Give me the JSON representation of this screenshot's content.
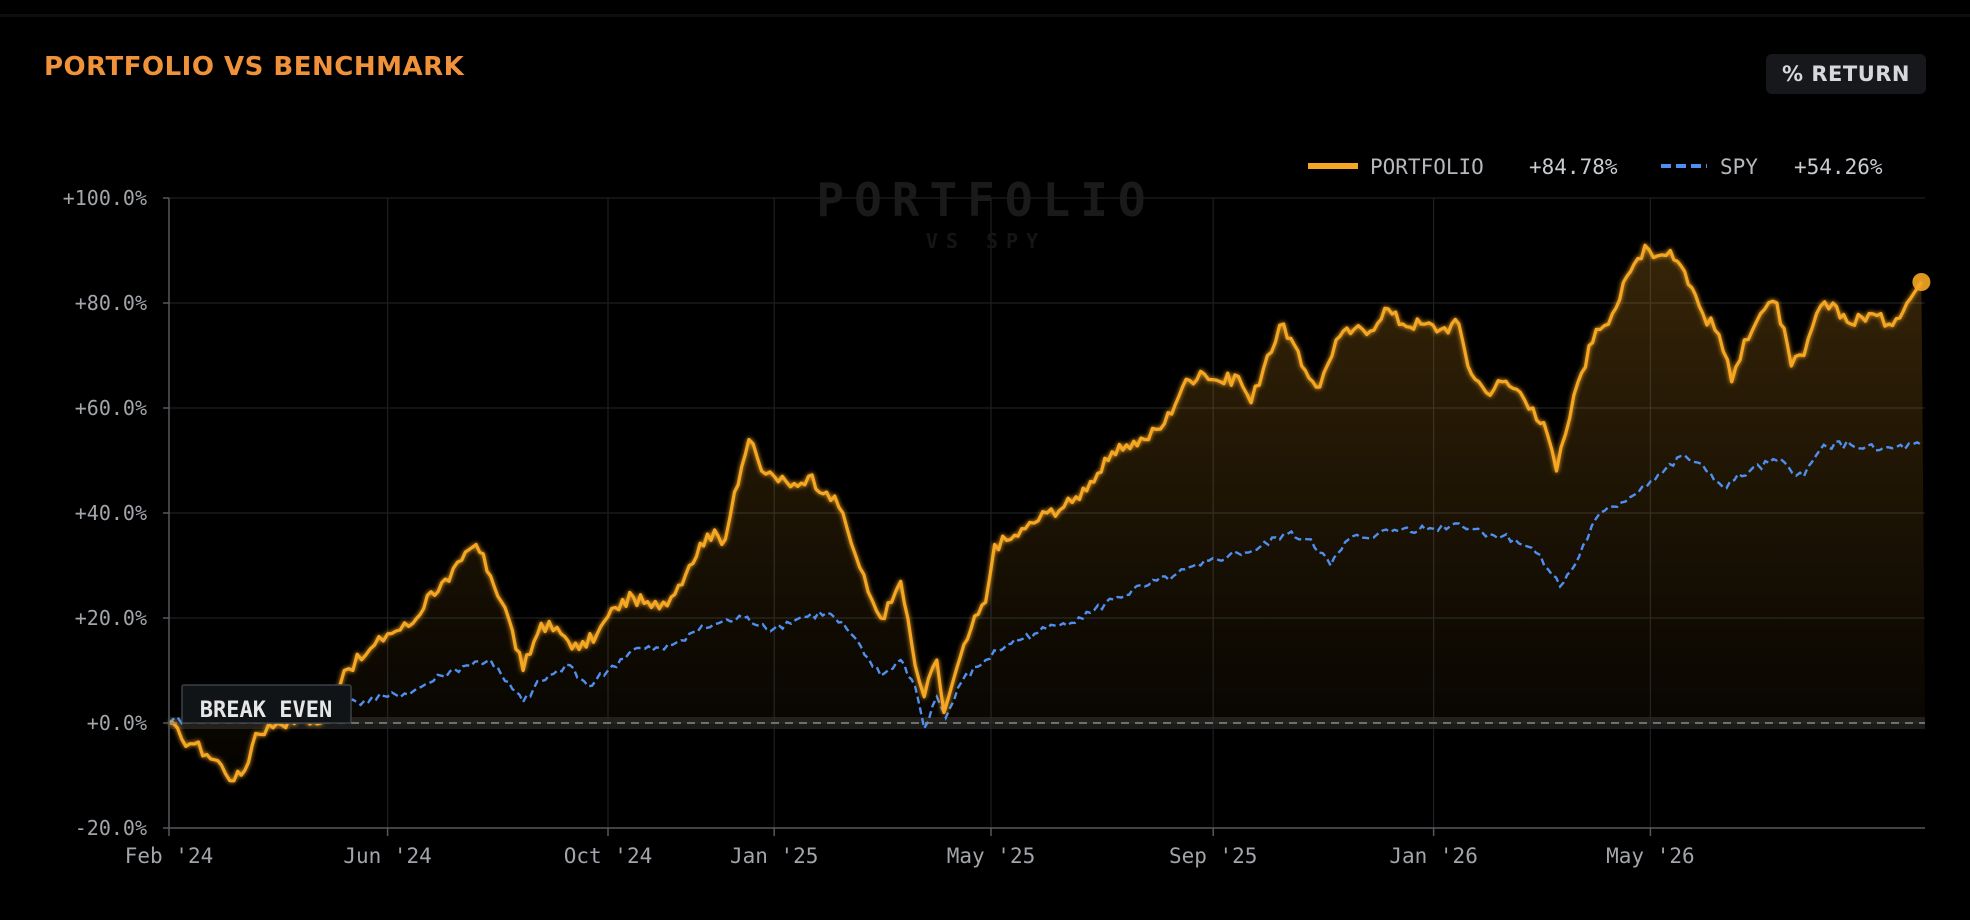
{
  "header": {
    "title": "PORTFOLIO VS BENCHMARK",
    "badge": "% RETURN"
  },
  "watermark": {
    "line1": "PORTFOLIO",
    "line2": "VS SPY"
  },
  "legend": [
    {
      "name": "PORTFOLIO",
      "value": "+84.78%",
      "style": "solid",
      "color": "#f5a623"
    },
    {
      "name": "SPY",
      "value": "+54.26%",
      "style": "dashed",
      "color": "#4f8ff0"
    }
  ],
  "annotation": {
    "label": "BREAK EVEN"
  },
  "colors": {
    "portfolio": "#f5a623",
    "spy": "#4f8ff0",
    "title": "#f0923a",
    "background": "#000000"
  },
  "chart_data": {
    "type": "line",
    "title": "PORTFOLIO VS BENCHMARK",
    "y_unit": "%",
    "ylim": [
      -20,
      100
    ],
    "yticks": [
      "+100.0%",
      "+80.0%",
      "+60.0%",
      "+40.0%",
      "+20.0%",
      "+0.0%",
      "-20.0%"
    ],
    "ytick_values": [
      100,
      80,
      60,
      40,
      20,
      0,
      -20
    ],
    "xlim": [
      "2024-02-01",
      "2026-09-30"
    ],
    "xticks": [
      {
        "label": "Feb '24",
        "date": "2024-02-01"
      },
      {
        "label": "Jun '24",
        "date": "2024-06-01"
      },
      {
        "label": "Oct '24",
        "date": "2024-10-01"
      },
      {
        "label": "Jan '25",
        "date": "2025-01-01"
      },
      {
        "label": "May '25",
        "date": "2025-05-01"
      },
      {
        "label": "Sep '25",
        "date": "2025-09-01"
      },
      {
        "label": "Jan '26",
        "date": "2026-01-01"
      },
      {
        "label": "May '26",
        "date": "2026-05-01"
      }
    ],
    "grid": true,
    "legend_position": "top-right",
    "series": [
      {
        "name": "PORTFOLIO",
        "points": [
          [
            "2024-02-01",
            0
          ],
          [
            "2024-02-08",
            -3
          ],
          [
            "2024-02-15",
            -4
          ],
          [
            "2024-02-22",
            -6
          ],
          [
            "2024-03-01",
            -8
          ],
          [
            "2024-03-08",
            -11
          ],
          [
            "2024-03-14",
            -9
          ],
          [
            "2024-03-20",
            -2
          ],
          [
            "2024-04-01",
            0
          ],
          [
            "2024-04-15",
            1
          ],
          [
            "2024-04-25",
            0
          ],
          [
            "2024-05-01",
            4
          ],
          [
            "2024-05-08",
            10
          ],
          [
            "2024-05-20",
            13
          ],
          [
            "2024-06-01",
            17
          ],
          [
            "2024-06-15",
            19
          ],
          [
            "2024-06-25",
            25
          ],
          [
            "2024-07-05",
            27
          ],
          [
            "2024-07-12",
            31
          ],
          [
            "2024-07-20",
            34
          ],
          [
            "2024-07-28",
            28
          ],
          [
            "2024-08-05",
            22
          ],
          [
            "2024-08-15",
            10
          ],
          [
            "2024-08-25",
            19
          ],
          [
            "2024-09-05",
            17
          ],
          [
            "2024-09-15",
            14
          ],
          [
            "2024-09-25",
            17
          ],
          [
            "2024-10-05",
            22
          ],
          [
            "2024-10-15",
            24
          ],
          [
            "2024-10-25",
            22
          ],
          [
            "2024-11-05",
            24
          ],
          [
            "2024-11-15",
            30
          ],
          [
            "2024-11-25",
            36
          ],
          [
            "2024-12-05",
            35
          ],
          [
            "2024-12-10",
            44
          ],
          [
            "2024-12-18",
            54
          ],
          [
            "2024-12-25",
            48
          ],
          [
            "2025-01-01",
            47
          ],
          [
            "2025-01-10",
            45
          ],
          [
            "2025-01-20",
            47
          ],
          [
            "2025-01-30",
            44
          ],
          [
            "2025-02-08",
            40
          ],
          [
            "2025-02-15",
            32
          ],
          [
            "2025-02-22",
            25
          ],
          [
            "2025-03-01",
            20
          ],
          [
            "2025-03-07",
            23
          ],
          [
            "2025-03-12",
            27
          ],
          [
            "2025-03-20",
            11
          ],
          [
            "2025-03-25",
            5
          ],
          [
            "2025-04-01",
            12
          ],
          [
            "2025-04-05",
            2
          ],
          [
            "2025-04-10",
            8
          ],
          [
            "2025-04-20",
            18
          ],
          [
            "2025-04-28",
            23
          ],
          [
            "2025-05-03",
            34
          ],
          [
            "2025-05-12",
            35
          ],
          [
            "2025-05-20",
            37
          ],
          [
            "2025-06-01",
            40
          ],
          [
            "2025-06-15",
            42
          ],
          [
            "2025-06-25",
            46
          ],
          [
            "2025-07-05",
            50
          ],
          [
            "2025-07-15",
            53
          ],
          [
            "2025-07-25",
            54
          ],
          [
            "2025-08-05",
            57
          ],
          [
            "2025-08-15",
            64
          ],
          [
            "2025-08-25",
            67
          ],
          [
            "2025-09-05",
            65
          ],
          [
            "2025-09-15",
            66
          ],
          [
            "2025-09-22",
            61
          ],
          [
            "2025-10-01",
            70
          ],
          [
            "2025-10-10",
            76
          ],
          [
            "2025-10-20",
            68
          ],
          [
            "2025-10-30",
            64
          ],
          [
            "2025-11-08",
            73
          ],
          [
            "2025-11-18",
            75
          ],
          [
            "2025-11-25",
            74
          ],
          [
            "2025-12-05",
            79
          ],
          [
            "2025-12-15",
            76
          ],
          [
            "2025-12-25",
            76
          ],
          [
            "2026-01-05",
            75
          ],
          [
            "2026-01-15",
            76
          ],
          [
            "2026-01-20",
            68
          ],
          [
            "2026-01-30",
            63
          ],
          [
            "2026-02-08",
            65
          ],
          [
            "2026-02-18",
            63
          ],
          [
            "2026-02-25",
            60
          ],
          [
            "2026-03-05",
            55
          ],
          [
            "2026-03-10",
            48
          ],
          [
            "2026-03-15",
            55
          ],
          [
            "2026-03-22",
            65
          ],
          [
            "2026-04-01",
            75
          ],
          [
            "2026-04-10",
            78
          ],
          [
            "2026-04-20",
            86
          ],
          [
            "2026-04-28",
            91
          ],
          [
            "2026-05-05",
            89
          ],
          [
            "2026-05-12",
            90
          ],
          [
            "2026-05-20",
            86
          ],
          [
            "2026-05-30",
            78
          ],
          [
            "2026-06-08",
            74
          ],
          [
            "2026-06-15",
            65
          ],
          [
            "2026-06-22",
            73
          ],
          [
            "2026-07-01",
            78
          ],
          [
            "2026-07-10",
            80
          ],
          [
            "2026-07-18",
            68
          ],
          [
            "2026-07-25",
            70
          ],
          [
            "2026-08-01",
            78
          ],
          [
            "2026-08-10",
            80
          ],
          [
            "2026-08-20",
            76
          ],
          [
            "2026-08-30",
            78
          ],
          [
            "2026-09-10",
            76
          ],
          [
            "2026-09-20",
            80
          ],
          [
            "2026-09-28",
            84
          ]
        ]
      },
      {
        "name": "SPY",
        "points": [
          [
            "2024-02-01",
            0
          ],
          [
            "2024-02-15",
            1
          ],
          [
            "2024-03-01",
            1.5
          ],
          [
            "2024-04-01",
            2
          ],
          [
            "2024-04-20",
            2
          ],
          [
            "2024-05-01",
            3
          ],
          [
            "2024-05-15",
            4
          ],
          [
            "2024-06-01",
            5
          ],
          [
            "2024-06-15",
            6
          ],
          [
            "2024-07-01",
            9
          ],
          [
            "2024-07-15",
            11
          ],
          [
            "2024-07-28",
            12
          ],
          [
            "2024-08-05",
            8
          ],
          [
            "2024-08-15",
            4
          ],
          [
            "2024-08-25",
            8
          ],
          [
            "2024-09-10",
            11
          ],
          [
            "2024-09-20",
            7
          ],
          [
            "2024-10-01",
            10
          ],
          [
            "2024-10-15",
            14
          ],
          [
            "2024-11-01",
            14
          ],
          [
            "2024-11-15",
            17
          ],
          [
            "2024-12-01",
            19
          ],
          [
            "2024-12-15",
            20
          ],
          [
            "2025-01-01",
            18
          ],
          [
            "2025-01-15",
            20
          ],
          [
            "2025-01-30",
            21
          ],
          [
            "2025-02-10",
            18
          ],
          [
            "2025-02-20",
            13
          ],
          [
            "2025-03-01",
            9
          ],
          [
            "2025-03-12",
            12
          ],
          [
            "2025-03-20",
            7
          ],
          [
            "2025-03-25",
            -1
          ],
          [
            "2025-04-01",
            5
          ],
          [
            "2025-04-06",
            1
          ],
          [
            "2025-04-15",
            8
          ],
          [
            "2025-04-28",
            12
          ],
          [
            "2025-05-10",
            15
          ],
          [
            "2025-05-25",
            17
          ],
          [
            "2025-06-10",
            19
          ],
          [
            "2025-06-25",
            21
          ],
          [
            "2025-07-10",
            24
          ],
          [
            "2025-07-25",
            26
          ],
          [
            "2025-08-10",
            28
          ],
          [
            "2025-08-25",
            30
          ],
          [
            "2025-09-10",
            32
          ],
          [
            "2025-09-25",
            33
          ],
          [
            "2025-10-10",
            36
          ],
          [
            "2025-10-25",
            35
          ],
          [
            "2025-11-05",
            30
          ],
          [
            "2025-11-15",
            35
          ],
          [
            "2025-12-01",
            36
          ],
          [
            "2025-12-15",
            37
          ],
          [
            "2026-01-01",
            37
          ],
          [
            "2026-01-15",
            38
          ],
          [
            "2026-02-01",
            36
          ],
          [
            "2026-02-15",
            35
          ],
          [
            "2026-03-01",
            32
          ],
          [
            "2026-03-12",
            26
          ],
          [
            "2026-03-20",
            30
          ],
          [
            "2026-04-01",
            39
          ],
          [
            "2026-04-15",
            42
          ],
          [
            "2026-05-01",
            46
          ],
          [
            "2026-05-20",
            51
          ],
          [
            "2026-06-01",
            48
          ],
          [
            "2026-06-10",
            45
          ],
          [
            "2026-06-25",
            48
          ],
          [
            "2026-07-10",
            50
          ],
          [
            "2026-07-25",
            47
          ],
          [
            "2026-08-05",
            53
          ],
          [
            "2026-08-20",
            53
          ],
          [
            "2026-09-05",
            52
          ],
          [
            "2026-09-28",
            53
          ]
        ]
      }
    ]
  }
}
